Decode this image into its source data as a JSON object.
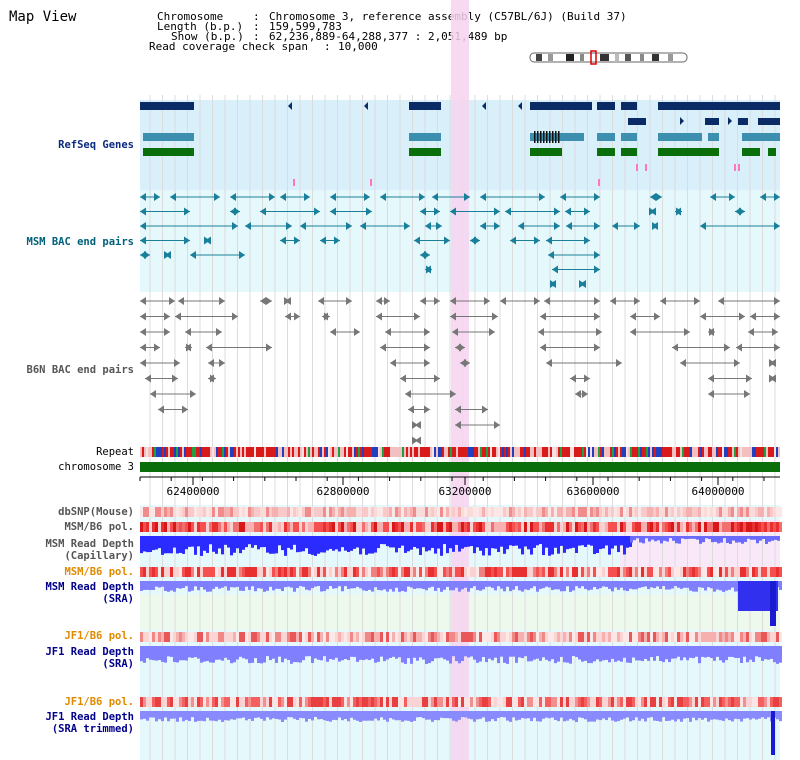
{
  "app": {
    "title": "Map View"
  },
  "info": {
    "chromosome_key": "Chromosome",
    "chromosome_val": "Chromosome 3, reference assembly (C57BL/6J) (Build 37)",
    "length_key": "Length (b.p.)",
    "length_val": "159,599,783",
    "show_key": "Show (b.p.)",
    "show_val": "62,236,889-64,288,377 : 2,051,489 bp",
    "coverage_key": "Read coverage check span",
    "coverage_val": "10,000"
  },
  "tracks": {
    "refseq": "RefSeq Genes",
    "msm_bac": "MSM BAC end pairs",
    "b6n_bac": "B6N BAC end pairs",
    "repeat": "Repeat",
    "chromosome": "chromosome 3",
    "dbsnp": "dbSNP(Mouse)",
    "msm_b6_pol_1": "MSM/B6 pol.",
    "msm_depth_cap_1": "MSM Read Depth",
    "msm_depth_cap_2": "(Capillary)",
    "msm_b6_pol_2": "MSM/B6 pol.",
    "msm_depth_sra_1": "MSM Read Depth",
    "msm_depth_sra_2": "(SRA)",
    "jf1_b6_pol_1": "JF1/B6 pol.",
    "jf1_depth_sra_1": "JF1 Read Depth",
    "jf1_depth_sra_2": "(SRA)",
    "jf1_b6_pol_2": "JF1/B6 pol.",
    "jf1_depth_trim_1": "JF1 Read Depth",
    "jf1_depth_trim_2": "(SRA trimmed)"
  },
  "axis": {
    "ticks": [
      "62400000",
      "62800000",
      "63200000",
      "63600000",
      "64000000"
    ]
  },
  "colors": {
    "refseq_bg": "#d9f0fb",
    "msm_bac_bg": "#e5f8fb",
    "highlight": "#f6d3ef",
    "gene_navy": "#0b2b66",
    "gene_teal": "#3d8fb0",
    "gene_green": "#0a6e0a",
    "chromosome_green": "#0a6e0a",
    "depth_blue": "#2b2bff",
    "depth_light_blue": "#8080ff"
  }
}
